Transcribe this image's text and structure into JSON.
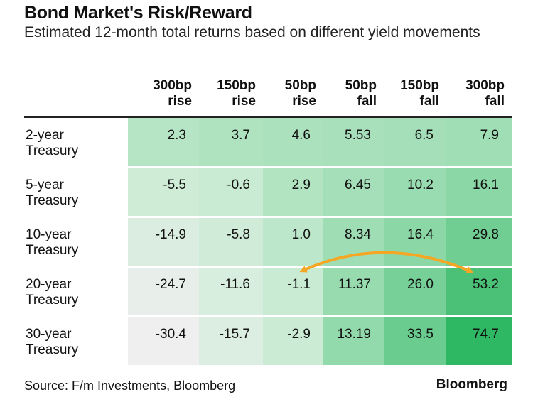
{
  "title": "Bond Market's Risk/Reward",
  "subtitle": "Estimated 12-month total returns based on different yield movements",
  "columns": [
    {
      "line1": "300bp",
      "line2": "rise"
    },
    {
      "line1": "150bp",
      "line2": "rise"
    },
    {
      "line1": "50bp",
      "line2": "rise"
    },
    {
      "line1": "50bp",
      "line2": "fall"
    },
    {
      "line1": "150bp",
      "line2": "fall"
    },
    {
      "line1": "300bp",
      "line2": "fall"
    }
  ],
  "rows": [
    {
      "line1": "2-year",
      "line2": "Treasury",
      "values": [
        "2.3",
        "3.7",
        "4.6",
        "5.53",
        "6.5",
        "7.9"
      ]
    },
    {
      "line1": "5-year",
      "line2": "Treasury",
      "values": [
        "-5.5",
        "-0.6",
        "2.9",
        "6.45",
        "10.2",
        "16.1"
      ]
    },
    {
      "line1": "10-year",
      "line2": "Treasury",
      "values": [
        "-14.9",
        "-5.8",
        "1.0",
        "8.34",
        "16.4",
        "29.8"
      ]
    },
    {
      "line1": "20-year",
      "line2": "Treasury",
      "values": [
        "-24.7",
        "-11.6",
        "-1.1",
        "11.37",
        "26.0",
        "53.2"
      ]
    },
    {
      "line1": "30-year",
      "line2": "Treasury",
      "values": [
        "-30.4",
        "-15.7",
        "-2.9",
        "13.19",
        "33.5",
        "74.7"
      ]
    }
  ],
  "source": "Source: F/m Investments, Bloomberg",
  "brand": "Bloomberg",
  "colors": {
    "arrow": "#f5a623",
    "lowest": "#efefef",
    "highest": "#2fb864"
  },
  "chart_data": {
    "type": "table",
    "title": "Bond Market's Risk/Reward",
    "subtitle": "Estimated 12-month total returns based on different yield movements",
    "categories": [
      "300bp rise",
      "150bp rise",
      "50bp rise",
      "50bp fall",
      "150bp fall",
      "300bp fall"
    ],
    "series": [
      {
        "name": "2-year Treasury",
        "values": [
          2.3,
          3.7,
          4.6,
          5.53,
          6.5,
          7.9
        ]
      },
      {
        "name": "5-year Treasury",
        "values": [
          -5.5,
          -0.6,
          2.9,
          6.45,
          10.2,
          16.1
        ]
      },
      {
        "name": "10-year Treasury",
        "values": [
          -14.9,
          -5.8,
          1.0,
          8.34,
          16.4,
          29.8
        ]
      },
      {
        "name": "20-year Treasury",
        "values": [
          -24.7,
          -11.6,
          -1.1,
          11.37,
          26.0,
          53.2
        ]
      },
      {
        "name": "30-year Treasury",
        "values": [
          -30.4,
          -15.7,
          -2.9,
          13.19,
          33.5,
          74.7
        ]
      }
    ],
    "annotations": [
      {
        "type": "double-arrow",
        "from": {
          "row": "20-year Treasury",
          "col": "50bp rise"
        },
        "to": {
          "row": "20-year Treasury",
          "col": "300bp fall"
        }
      }
    ]
  }
}
